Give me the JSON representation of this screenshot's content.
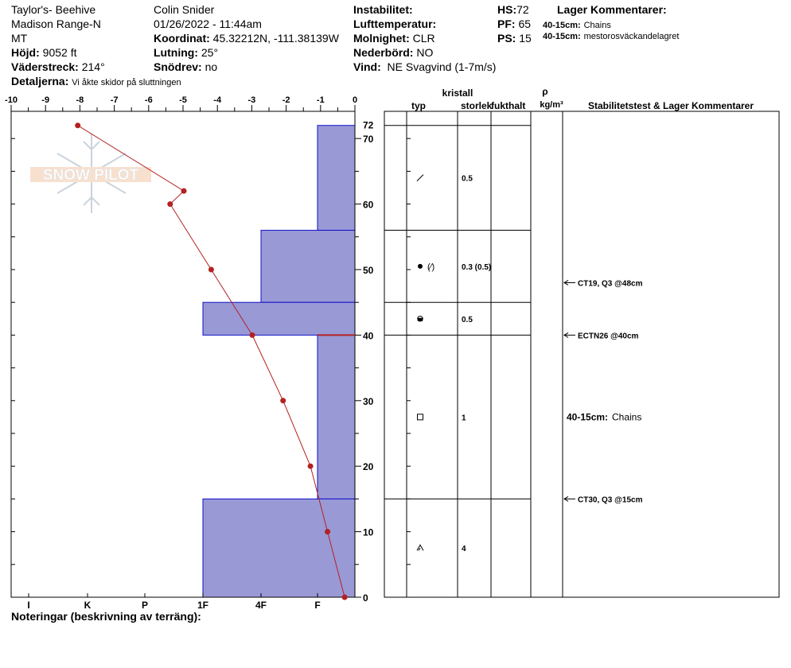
{
  "header": {
    "location": "Taylor's- Beehive",
    "range": "Madison Range-N",
    "state": "MT",
    "elevation_label": "Höjd:",
    "elevation_value": "9052 ft",
    "aspect_label": "Väderstreck:",
    "aspect_value": "214°",
    "details_label": "Detaljerna:",
    "details_value": "Vi åkte skidor på sluttningen",
    "observer": "Colin Snider",
    "datetime": "01/26/2022 - 11:44am",
    "coord_label": "Koordinat:",
    "coord_value": "45.32212N, -111.38139W",
    "slope_label": "Lutning:",
    "slope_value": "25°",
    "drift_label": "Snödrev:",
    "drift_value": "no",
    "instability_label": "Instabilitet:",
    "airtemp_label": "Lufttemperatur:",
    "sky_label": "Molnighet:",
    "sky_value": "CLR",
    "precip_label": "Nederbörd:",
    "precip_value": "NO",
    "wind_label": "Vind:",
    "wind_value": "NE Svagvind (1-7m/s)",
    "hs_label": "HS:",
    "hs_value": "72",
    "pf_label": "PF:",
    "pf_value": "65",
    "ps_label": "PS:",
    "ps_value": "15",
    "layer_comments_title": "Lager Kommentarer:",
    "layer_comments": [
      {
        "range": "40-15cm:",
        "text": "Chains"
      },
      {
        "range": "40-15cm:",
        "text": "mestorosväckandelagret"
      }
    ]
  },
  "watermark": "SNOW PILOT",
  "footer": {
    "notes_label": "Noteringar (beskrivning av terräng):"
  },
  "chart_data": {
    "type": "line",
    "y_axis": {
      "label": "",
      "range": [
        0,
        74
      ],
      "ticks": [
        0,
        10,
        20,
        30,
        40,
        50,
        60,
        70
      ],
      "top_label": "72"
    },
    "temp_axis": {
      "range": [
        -10,
        0
      ],
      "ticks": [
        "-10",
        "-9",
        "-8",
        "-7",
        "-6",
        "-5",
        "-4",
        "-3",
        "-2",
        "-1",
        "0"
      ]
    },
    "hardness_axis": {
      "ticks": [
        "I",
        "K",
        "P",
        "1F",
        "4F",
        "F"
      ]
    },
    "temperature_profile": {
      "color": "#b22222",
      "points": [
        {
          "depth": 72,
          "temp": -8.1
        },
        {
          "depth": 62,
          "temp": -5.0
        },
        {
          "depth": 60,
          "temp": -5.4
        },
        {
          "depth": 50,
          "temp": -4.2
        },
        {
          "depth": 40,
          "temp": -3.0
        },
        {
          "depth": 30,
          "temp": -2.1
        },
        {
          "depth": 20,
          "temp": -1.3
        },
        {
          "depth": 10,
          "temp": -0.8
        },
        {
          "depth": 0,
          "temp": -0.3
        }
      ]
    },
    "hardness_profile": {
      "color": "#9999d6",
      "layers": [
        {
          "top": 72,
          "bottom": 56,
          "hardness": "F"
        },
        {
          "top": 56,
          "bottom": 45,
          "hardness": "4F"
        },
        {
          "top": 45,
          "bottom": 40,
          "hardness": "1F"
        },
        {
          "top": 40,
          "bottom": 15,
          "hardness": "F"
        },
        {
          "top": 15,
          "bottom": 0,
          "hardness": "1F"
        }
      ]
    },
    "table_headers": {
      "crystal": "kristall",
      "type": "typ",
      "size": "storlek",
      "moisture": "fukthalt",
      "rho": "ρ",
      "density_unit": "kg/m³",
      "stability": "Stabilitetstest & Lager Kommentarer"
    },
    "table_lines": [
      72,
      56,
      45,
      40,
      15
    ],
    "table_rows": [
      {
        "mid": 64,
        "type_icon": "slash-icon",
        "size": "0.5"
      },
      {
        "mid": 50.5,
        "type_icon": "dot-slash-icon",
        "size": "0.3 (0.5)"
      },
      {
        "mid": 42.5,
        "type_icon": "half-dot-icon",
        "size": "0.5"
      },
      {
        "mid": 27.5,
        "type_icon": "square-icon",
        "size": "1"
      },
      {
        "mid": 7.5,
        "type_icon": "depth-hoar-icon",
        "size": "4"
      }
    ],
    "stability_tests": [
      {
        "depth": 48,
        "label": "CT19, Q3 @48cm"
      },
      {
        "depth": 40,
        "label": "ECTN26 @40cm"
      },
      {
        "depth": 15,
        "label": "CT30, Q3 @15cm"
      }
    ],
    "table_comment": {
      "depth": 27.5,
      "range": "40-15cm:",
      "text": "Chains"
    }
  }
}
